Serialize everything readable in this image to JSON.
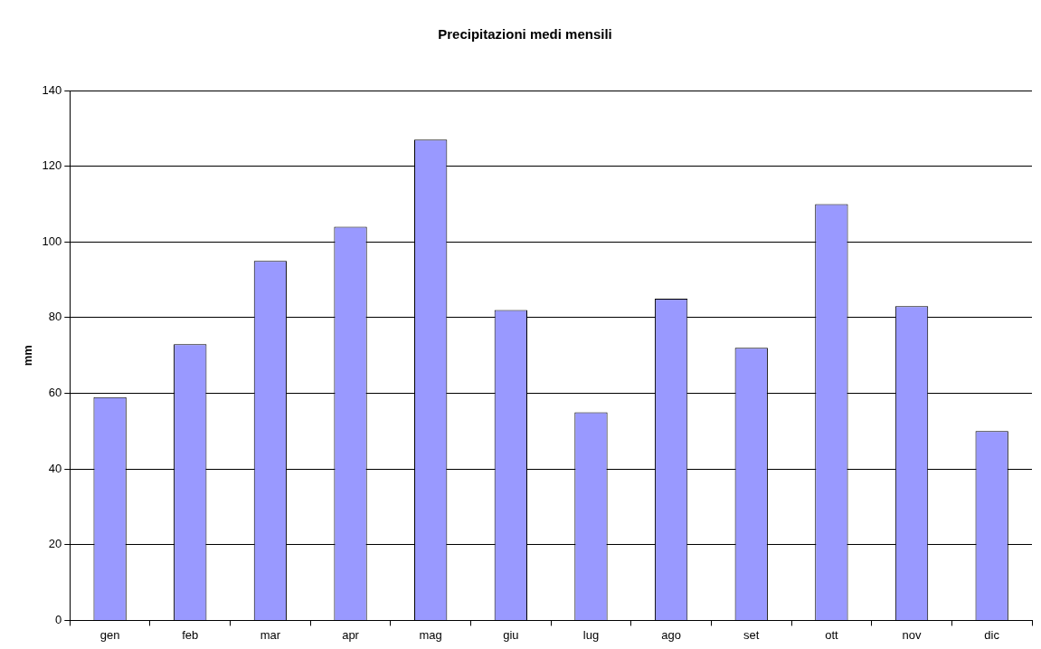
{
  "chart_data": {
    "type": "bar",
    "title": "Precipitazioni medi mensili",
    "ylabel": "mm",
    "categories": [
      "gen",
      "feb",
      "mar",
      "apr",
      "mag",
      "giu",
      "lug",
      "ago",
      "set",
      "ott",
      "nov",
      "dic"
    ],
    "values": [
      59,
      73,
      95,
      104,
      127,
      82,
      55,
      85,
      72,
      110,
      83,
      50
    ],
    "color": "#9999ff",
    "ylim": [
      0,
      140
    ],
    "yticks": [
      0,
      20,
      40,
      60,
      80,
      100,
      120,
      140
    ],
    "grid": "y",
    "legend": false
  }
}
